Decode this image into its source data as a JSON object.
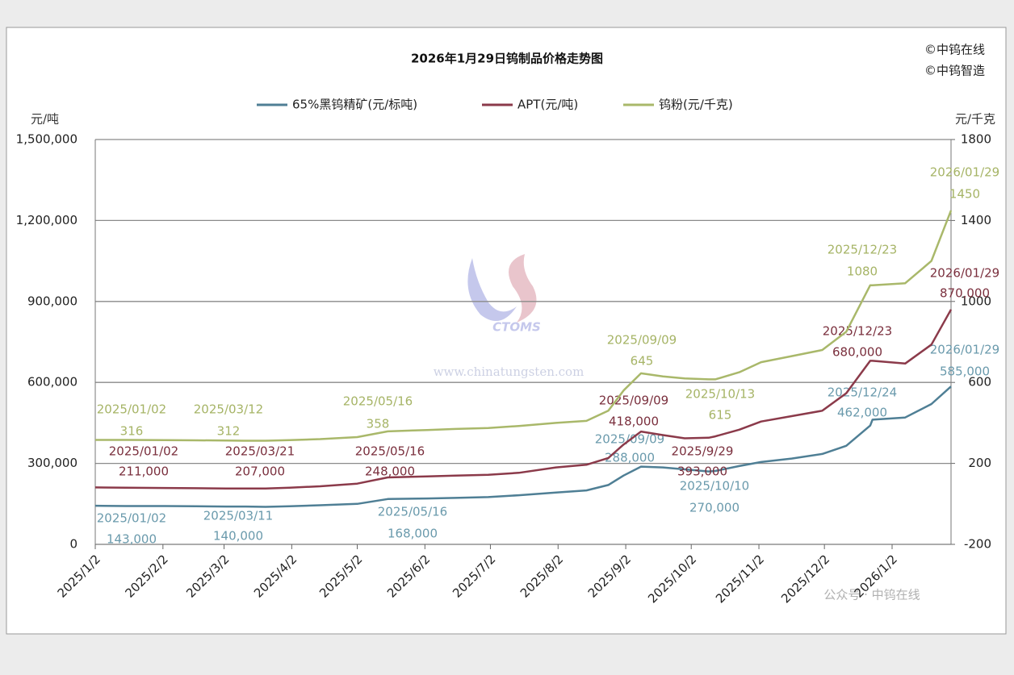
{
  "chart_data": {
    "type": "line",
    "title": "2026年1月29日钨制品价格走势图",
    "copyright": [
      "©中钨在线",
      "©中钨智造"
    ],
    "watermark": "www.chinatungsten.com",
    "logo_text": "CTOMS",
    "footer": "公众号 · 中钨在线",
    "y_label": "元/吨",
    "y2_label": "元/千克",
    "xlim": [
      "2025/1/2",
      "2026/1/29"
    ],
    "xticks": [
      "2025/1/2",
      "2025/2/2",
      "2025/3/2",
      "2025/4/2",
      "2025/5/2",
      "2025/6/2",
      "2025/7/2",
      "2025/8/2",
      "2025/9/2",
      "2025/10/2",
      "2025/11/2",
      "2025/12/2",
      "2026/1/2"
    ],
    "ylim": [
      0,
      1500000
    ],
    "yticks": [
      0,
      {
        "value": 300000,
        "label": "300,000"
      },
      {
        "value": 600000,
        "label": "600,000"
      },
      {
        "value": 900000,
        "label": "900,000"
      },
      {
        "value": 1200000,
        "label": "1,200,000"
      },
      {
        "value": 1500000,
        "label": "1,500,000"
      }
    ],
    "y2lim": [
      -200,
      1800
    ],
    "y2ticks": [
      -200,
      200,
      600,
      1000,
      1400,
      1800
    ],
    "grid": true,
    "x": [
      "2025/01/02",
      "2025/01/16",
      "2025/02/03",
      "2025/02/17",
      "2025/03/03",
      "2025/03/11",
      "2025/03/12",
      "2025/03/21",
      "2025/04/01",
      "2025/04/15",
      "2025/05/02",
      "2025/05/16",
      "2025/06/03",
      "2025/06/16",
      "2025/07/01",
      "2025/07/15",
      "2025/08/01",
      "2025/08/15",
      "2025/08/25",
      "2025/09/01",
      "2025/09/09",
      "2025/09/19",
      "2025/09/29",
      "2025/10/10",
      "2025/10/13",
      "2025/10/24",
      "2025/11/03",
      "2025/11/17",
      "2025/12/01",
      "2025/12/12",
      "2025/12/23",
      "2025/12/24",
      "2026/01/08",
      "2026/01/20",
      "2026/01/29"
    ],
    "series": [
      {
        "name": "65%黑钨精矿(元/标吨)",
        "color": "#4f7f95",
        "values": [
          143000,
          142000,
          142000,
          141000,
          140000,
          140000,
          140000,
          139000,
          141000,
          145000,
          150000,
          168000,
          170000,
          172000,
          175000,
          182000,
          192000,
          200000,
          220000,
          255000,
          288000,
          285000,
          278000,
          270000,
          272000,
          290000,
          305000,
          318000,
          335000,
          365000,
          440000,
          462000,
          470000,
          520000,
          585000
        ],
        "annotations": [
          {
            "date": "2025/01/02",
            "value": {
              "value": 143000,
              "label": "143,000"
            }
          },
          {
            "date": "2025/03/11",
            "value": {
              "value": 140000,
              "label": "140,000"
            }
          },
          {
            "date": "2025/05/16",
            "value": {
              "value": 168000,
              "label": "168,000"
            }
          },
          {
            "date": "2025/09/09",
            "value": {
              "value": 288000,
              "label": "288,000"
            }
          },
          {
            "date": "2025/10/10",
            "value": {
              "value": 270000,
              "label": "270,000"
            }
          },
          {
            "date": "2025/12/24",
            "value": {
              "value": 462000,
              "label": "462,000"
            }
          },
          {
            "date": "2026/01/29",
            "value": {
              "value": 585000,
              "label": "585,000"
            }
          }
        ]
      },
      {
        "name": "APT(元/吨)",
        "color": "#8b3a4a",
        "values": [
          211000,
          210000,
          209000,
          208000,
          207000,
          207000,
          207000,
          207000,
          210000,
          215000,
          225000,
          248000,
          252000,
          255000,
          258000,
          265000,
          285000,
          295000,
          320000,
          370000,
          418000,
          405000,
          393000,
          395000,
          400000,
          425000,
          455000,
          475000,
          495000,
          560000,
          680000,
          680000,
          670000,
          740000,
          870000
        ],
        "annotations": [
          {
            "date": "2025/01/02",
            "value": {
              "value": 211000,
              "label": "211,000"
            }
          },
          {
            "date": "2025/03/21",
            "value": {
              "value": 207000,
              "label": "207,000"
            }
          },
          {
            "date": "2025/05/16",
            "value": {
              "value": 248000,
              "label": "248,000"
            }
          },
          {
            "date": "2025/09/09",
            "value": {
              "value": 418000,
              "label": "418,000"
            }
          },
          {
            "date": "2025/9/29",
            "value": {
              "value": 393000,
              "label": "393,000"
            }
          },
          {
            "date": "2025/12/23",
            "value": {
              "value": 680000,
              "label": "680,000"
            }
          },
          {
            "date": "2026/01/29",
            "value": {
              "value": 870000,
              "label": "870,000"
            }
          }
        ]
      },
      {
        "name": "钨粉(元/千克)",
        "color": "#a9b86a",
        "axis": "y2",
        "values": [
          316,
          316,
          315,
          314,
          313,
          312,
          312,
          312,
          315,
          320,
          330,
          358,
          365,
          370,
          375,
          385,
          400,
          410,
          460,
          560,
          645,
          630,
          620,
          615,
          615,
          650,
          700,
          730,
          760,
          850,
          1080,
          1080,
          1090,
          1200,
          1450
        ],
        "annotations": [
          {
            "date": "2025/01/02",
            "value": 316
          },
          {
            "date": "2025/03/12",
            "value": 312
          },
          {
            "date": "2025/05/16",
            "value": 358
          },
          {
            "date": "2025/09/09",
            "value": 645
          },
          {
            "date": "2025/10/13",
            "value": 615
          },
          {
            "date": "2025/12/23",
            "value": 1080
          },
          {
            "date": "2026/01/29",
            "value": 1450
          }
        ]
      }
    ]
  }
}
